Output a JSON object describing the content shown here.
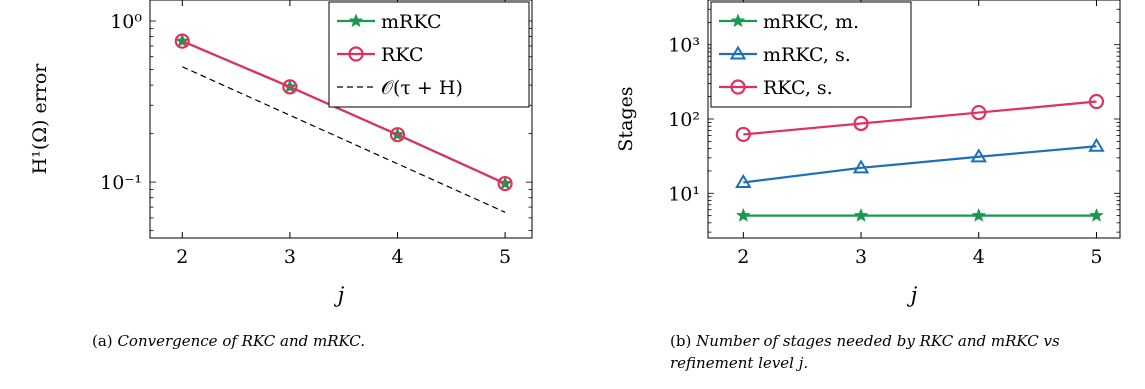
{
  "chart_data": [
    {
      "type": "line",
      "xlabel": "j",
      "ylabel": "H¹(Ω) error",
      "yscale": "log",
      "xlim": [
        1.7,
        5.25
      ],
      "ylim": [
        0.045,
        1.35
      ],
      "x_ticks": [
        2,
        3,
        4,
        5
      ],
      "y_tick_values": [
        1,
        0.1
      ],
      "y_tick_labels": [
        "10⁰",
        "10⁻¹"
      ],
      "grid": false,
      "legend_position": "top-right",
      "x": [
        2,
        3,
        4,
        5
      ],
      "series": [
        {
          "name": "mRKC",
          "values": [
            0.75,
            0.39,
            0.197,
            0.098
          ],
          "color": "#1a9850",
          "marker": "star"
        },
        {
          "name": "RKC",
          "values": [
            0.75,
            0.39,
            0.197,
            0.098
          ],
          "color": "#e0305e",
          "marker": "circle"
        },
        {
          "name": "𝒪(τ + H)",
          "values": [
            0.52,
            0.26,
            0.13,
            0.065
          ],
          "color": "#000000",
          "marker": "none",
          "dashed": true
        }
      ],
      "caption_label": "(a)",
      "caption": "Convergence of RKC and mRKC."
    },
    {
      "type": "line",
      "xlabel": "j",
      "ylabel": "Stages",
      "yscale": "log",
      "xlim": [
        1.7,
        5.2
      ],
      "ylim": [
        2.5,
        4000
      ],
      "x_ticks": [
        2,
        3,
        4,
        5
      ],
      "y_tick_values": [
        10,
        100,
        1000
      ],
      "y_tick_labels": [
        "10¹",
        "10²",
        "10³"
      ],
      "grid": false,
      "legend_position": "top-left",
      "x": [
        2,
        3,
        4,
        5
      ],
      "series": [
        {
          "name": "mRKC, m.",
          "values": [
            5,
            5,
            5,
            5
          ],
          "color": "#1a9850",
          "marker": "star"
        },
        {
          "name": "mRKC, s.",
          "values": [
            14,
            22,
            31,
            43
          ],
          "color": "#1f6fb4",
          "marker": "triangle"
        },
        {
          "name": "RKC, s.",
          "values": [
            62,
            87,
            122,
            172
          ],
          "color": "#e0305e",
          "marker": "circle"
        }
      ],
      "caption_label": "(b)",
      "caption": "Number of stages needed by RKC and mRKC vs refinement level j."
    }
  ]
}
